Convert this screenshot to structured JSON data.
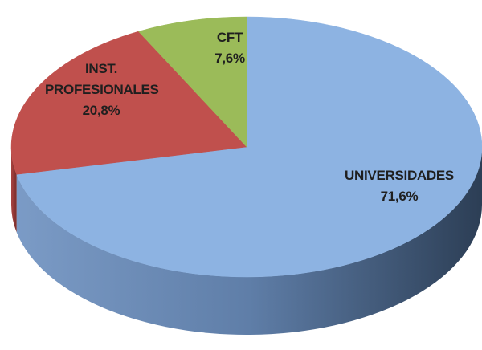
{
  "chart_data": {
    "type": "pie",
    "categories": [
      "UNIVERSIDADES",
      "INST. PROFESIONALES",
      "CFT"
    ],
    "values": [
      71.6,
      20.8,
      7.6
    ],
    "value_labels": [
      "71,6%",
      "20,8%",
      "7,6%"
    ],
    "colors": [
      "#8db3e2",
      "#c0504d",
      "#9bbb59"
    ]
  }
}
